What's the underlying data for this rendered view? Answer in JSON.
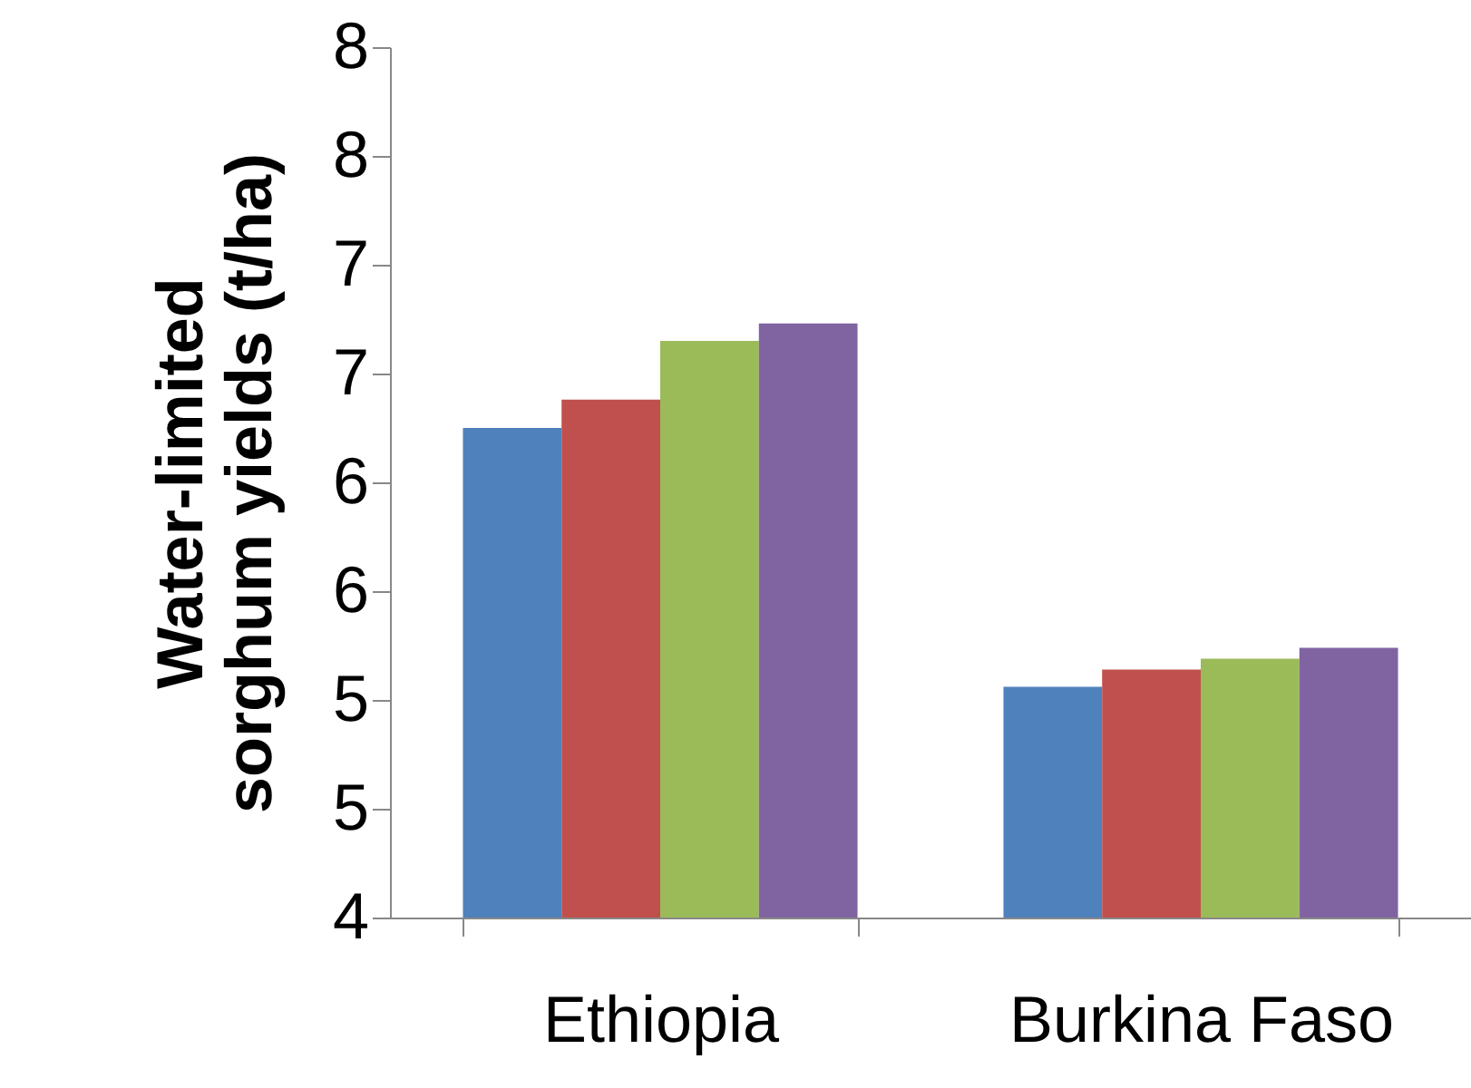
{
  "chart_data": {
    "type": "bar",
    "ylabel": "Water-limited sorghum yields (t/ha)",
    "categories": [
      "Ethiopia",
      "Burkina Faso"
    ],
    "series": [
      {
        "color": "#4f81bd",
        "values": [
          6.25,
          5.06
        ]
      },
      {
        "color": "#c0504d",
        "values": [
          6.38,
          5.14
        ]
      },
      {
        "color": "#9bbb59",
        "values": [
          6.65,
          5.19
        ]
      },
      {
        "color": "#8064a2",
        "values": [
          6.73,
          5.24
        ]
      }
    ],
    "ylim": [
      4,
      8
    ],
    "yticks": [
      {
        "value": 4,
        "label": "4"
      },
      {
        "value": 4.5,
        "label": "5"
      },
      {
        "value": 5,
        "label": "5"
      },
      {
        "value": 5.5,
        "label": "6"
      },
      {
        "value": 6,
        "label": "6"
      },
      {
        "value": 6.5,
        "label": "7"
      },
      {
        "value": 7,
        "label": "7"
      },
      {
        "value": 7.5,
        "label": "8"
      },
      {
        "value": 8,
        "label": "8"
      }
    ],
    "grid": false,
    "legend": false
  }
}
